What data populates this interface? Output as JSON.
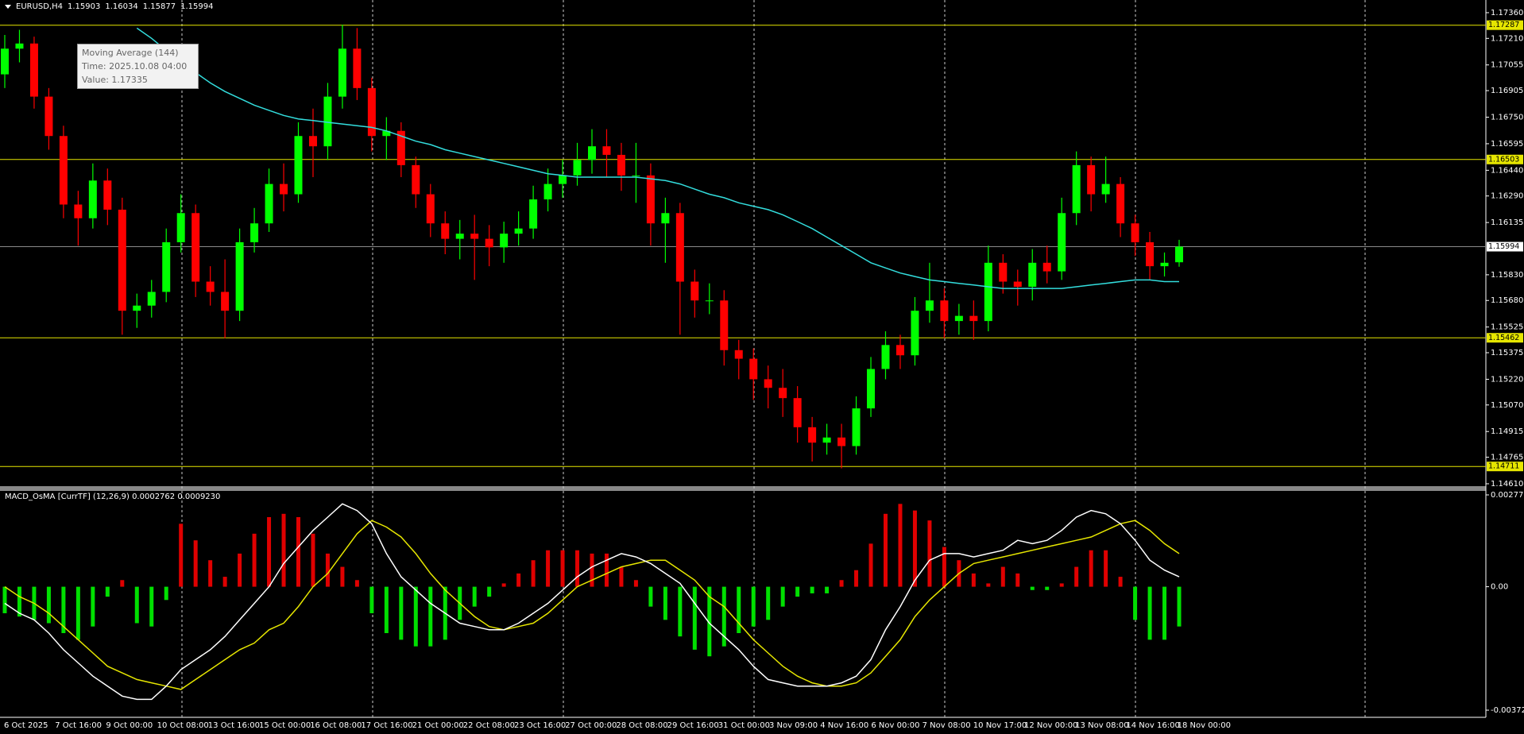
{
  "chart_data": [
    {
      "type": "candlestick",
      "title": "EURUSD,H4",
      "up_color": "#00ff00",
      "down_color": "#ff0000",
      "open": [
        1.17,
        1.1715,
        1.1718,
        1.1687,
        1.1664,
        1.1624,
        1.1616,
        1.1638,
        1.1621,
        1.1562,
        1.1565,
        1.1573,
        1.1602,
        1.1619,
        1.1579,
        1.1573,
        1.1562,
        1.1602,
        1.1613,
        1.1636,
        1.163,
        1.1664,
        1.1658,
        1.1687,
        1.1715,
        1.1692,
        1.1664,
        1.1667,
        1.1647,
        1.163,
        1.1613,
        1.1604,
        1.1607,
        1.1604,
        1.1599,
        1.1607,
        1.161,
        1.1627,
        1.1636,
        1.1641,
        1.165,
        1.1658,
        1.1653,
        1.1641,
        1.1641,
        1.1613,
        1.1619,
        1.1579,
        1.1568,
        1.1568,
        1.1539,
        1.1534,
        1.1522,
        1.1517,
        1.1511,
        1.1494,
        1.1485,
        1.1488,
        1.1483,
        1.1505,
        1.1528,
        1.1542,
        1.1536,
        1.1562,
        1.1568,
        1.1556,
        1.1559,
        1.1556,
        1.159,
        1.1579,
        1.1576,
        1.159,
        1.1585,
        1.1619,
        1.1647,
        1.163,
        1.1636,
        1.1613,
        1.1602,
        1.1588,
        1.15903
      ],
      "high": [
        1.1723,
        1.1726,
        1.1722,
        1.1692,
        1.167,
        1.1632,
        1.1648,
        1.1645,
        1.1628,
        1.1572,
        1.158,
        1.161,
        1.163,
        1.1624,
        1.1588,
        1.1592,
        1.161,
        1.1622,
        1.1645,
        1.1648,
        1.1672,
        1.168,
        1.1695,
        1.1729,
        1.1727,
        1.1698,
        1.1675,
        1.1672,
        1.1652,
        1.1636,
        1.162,
        1.1615,
        1.1618,
        1.1612,
        1.1614,
        1.162,
        1.1635,
        1.1645,
        1.165,
        1.166,
        1.1668,
        1.1668,
        1.166,
        1.166,
        1.1648,
        1.1628,
        1.1625,
        1.1586,
        1.1578,
        1.1574,
        1.1545,
        1.154,
        1.153,
        1.1528,
        1.1518,
        1.15,
        1.1496,
        1.1496,
        1.1512,
        1.1535,
        1.155,
        1.1548,
        1.157,
        1.159,
        1.1575,
        1.1566,
        1.1568,
        1.16,
        1.1595,
        1.1586,
        1.1598,
        1.16,
        1.1628,
        1.1655,
        1.1652,
        1.1652,
        1.164,
        1.1618,
        1.1608,
        1.1596,
        1.16034
      ],
      "low": [
        1.1692,
        1.1707,
        1.168,
        1.1656,
        1.1616,
        1.16,
        1.161,
        1.1612,
        1.1548,
        1.1552,
        1.1558,
        1.1567,
        1.1596,
        1.157,
        1.1565,
        1.1546,
        1.1556,
        1.1596,
        1.1608,
        1.162,
        1.1625,
        1.164,
        1.165,
        1.168,
        1.1685,
        1.1655,
        1.165,
        1.164,
        1.1622,
        1.1605,
        1.1595,
        1.1592,
        1.158,
        1.1588,
        1.159,
        1.16,
        1.1604,
        1.162,
        1.1628,
        1.1635,
        1.1642,
        1.164,
        1.1632,
        1.1625,
        1.16,
        1.159,
        1.1548,
        1.1558,
        1.156,
        1.153,
        1.1522,
        1.151,
        1.1505,
        1.15,
        1.1485,
        1.1474,
        1.1478,
        1.147,
        1.1478,
        1.15,
        1.1522,
        1.1528,
        1.153,
        1.1555,
        1.1546,
        1.1548,
        1.1545,
        1.155,
        1.1572,
        1.1565,
        1.1568,
        1.1578,
        1.158,
        1.1612,
        1.162,
        1.1625,
        1.1605,
        1.1594,
        1.158,
        1.1582,
        1.15877
      ],
      "close": [
        1.1715,
        1.1718,
        1.1687,
        1.1664,
        1.1624,
        1.1616,
        1.1638,
        1.1621,
        1.1562,
        1.1565,
        1.1573,
        1.1602,
        1.1619,
        1.1579,
        1.1573,
        1.1562,
        1.1602,
        1.1613,
        1.1636,
        1.163,
        1.1664,
        1.1658,
        1.1687,
        1.1715,
        1.1692,
        1.1664,
        1.1667,
        1.1647,
        1.163,
        1.1613,
        1.1604,
        1.1607,
        1.1604,
        1.1599,
        1.1607,
        1.161,
        1.1627,
        1.1636,
        1.1641,
        1.165,
        1.1658,
        1.1653,
        1.1641,
        1.1641,
        1.1613,
        1.1619,
        1.1579,
        1.1568,
        1.1568,
        1.1539,
        1.1534,
        1.1522,
        1.1517,
        1.1511,
        1.1494,
        1.1485,
        1.1488,
        1.1483,
        1.1505,
        1.1528,
        1.1542,
        1.1536,
        1.1562,
        1.1568,
        1.1556,
        1.1559,
        1.1556,
        1.159,
        1.1579,
        1.1576,
        1.159,
        1.1585,
        1.1619,
        1.1647,
        1.163,
        1.1636,
        1.1613,
        1.1602,
        1.1588,
        1.159,
        1.15994
      ],
      "ma": {
        "name": "Moving Average (144)",
        "color": "#33dddd",
        "values": [
          null,
          null,
          null,
          null,
          null,
          null,
          null,
          null,
          null,
          1.1727,
          1.1721,
          1.1714,
          1.1707,
          1.1701,
          1.1695,
          1.169,
          1.1686,
          1.1682,
          1.1679,
          1.1676,
          1.1674,
          1.1673,
          1.1672,
          1.1671,
          1.167,
          1.1669,
          1.1667,
          1.1664,
          1.1661,
          1.1659,
          1.1656,
          1.1654,
          1.1652,
          1.165,
          1.1648,
          1.1646,
          1.1644,
          1.1642,
          1.1641,
          1.164,
          1.164,
          1.164,
          1.164,
          1.164,
          1.1639,
          1.1638,
          1.1636,
          1.1633,
          1.163,
          1.1628,
          1.1625,
          1.1623,
          1.1621,
          1.1618,
          1.1614,
          1.161,
          1.1605,
          1.16,
          1.1595,
          1.159,
          1.1587,
          1.1584,
          1.1582,
          1.158,
          1.1579,
          1.1578,
          1.1577,
          1.1576,
          1.1575,
          1.1575,
          1.1575,
          1.1575,
          1.1575,
          1.1576,
          1.1577,
          1.1578,
          1.1579,
          1.158,
          1.158,
          1.1579,
          1.1579
        ]
      },
      "tooltip": {
        "time": "Time: 2025.10.08 04:00",
        "value": "Value: 1.17335"
      },
      "levels": [
        1.17287,
        1.16503,
        1.15462,
        1.14711
      ],
      "level_color": "#e6e600",
      "ylim": [
        1.14596,
        1.17434
      ],
      "yticks": [
        {
          "value": 1.1736,
          "label": "1.17360"
        },
        {
          "value": 1.1721,
          "label": "1.17210"
        },
        1.17055,
        1.16905,
        {
          "value": 1.1675,
          "label": "1.16750"
        },
        1.16595,
        {
          "value": 1.1644,
          "label": "1.16440"
        },
        {
          "value": 1.1629,
          "label": "1.16290"
        },
        1.16135,
        {
          "value": 1.1583,
          "label": "1.15830"
        },
        {
          "value": 1.1568,
          "label": "1.15680"
        },
        1.15525,
        1.15375,
        {
          "value": 1.1522,
          "label": "1.15220"
        },
        {
          "value": 1.1507,
          "label": "1.15070"
        },
        1.14915,
        1.14765,
        {
          "value": 1.1461,
          "label": "1.14610"
        }
      ],
      "x_labels": [
        "6 Oct 2025",
        "7 Oct 16:00",
        "9 Oct 00:00",
        "10 Oct 08:00",
        "13 Oct 16:00",
        "15 Oct 00:00",
        "16 Oct 08:00",
        "17 Oct 16:00",
        "21 Oct 00:00",
        "22 Oct 08:00",
        "23 Oct 16:00",
        "27 Oct 00:00",
        "28 Oct 08:00",
        "29 Oct 16:00",
        "31 Oct 00:00",
        "3 Nov 09:00",
        "4 Nov 16:00",
        "6 Nov 00:00",
        "7 Nov 08:00",
        "10 Nov 17:00",
        "12 Nov 00:00",
        "13 Nov 08:00",
        "14 Nov 16:00",
        "18 Nov 00:00"
      ]
    },
    {
      "type": "macd",
      "title": "MACD_OsMA [CurrTF] (12,26,9) 0.0002762 0.0009230",
      "pos_color": "#e00000",
      "neg_color": "#00e000",
      "macd_color": "#ffffff",
      "signal_color": "#e6e600",
      "histogram": [
        -0.0008,
        -0.0009,
        -0.001,
        -0.0011,
        -0.0014,
        -0.0016,
        -0.0012,
        -0.0003,
        0.0002,
        -0.0011,
        -0.0012,
        -0.0004,
        0.0019,
        0.0014,
        0.0008,
        0.0003,
        0.001,
        0.0016,
        0.0021,
        0.0022,
        0.0021,
        0.0016,
        0.001,
        0.0006,
        0.0002,
        -0.0008,
        -0.0014,
        -0.0016,
        -0.0018,
        -0.0018,
        -0.0016,
        -0.001,
        -0.0006,
        -0.0003,
        0.0001,
        0.0004,
        0.0008,
        0.0011,
        0.0011,
        0.0011,
        0.001,
        0.001,
        0.0006,
        0.0002,
        -0.0006,
        -0.001,
        -0.0015,
        -0.0019,
        -0.0021,
        -0.0018,
        -0.0014,
        -0.0012,
        -0.001,
        -0.0006,
        -0.0003,
        -0.0002,
        -0.0002,
        0.0002,
        0.0005,
        0.0013,
        0.0022,
        0.0025,
        0.0023,
        0.002,
        0.0012,
        0.0008,
        0.0004,
        0.0001,
        0.0006,
        0.0004,
        -0.0001,
        -0.0001,
        0.0001,
        0.0006,
        0.0011,
        0.0011,
        0.0003,
        -0.001,
        -0.0016,
        -0.0016,
        -0.0012
      ],
      "macd": [
        -0.0005,
        -0.0008,
        -0.001,
        -0.0014,
        -0.0019,
        -0.0023,
        -0.0027,
        -0.003,
        -0.0033,
        -0.0034,
        -0.0034,
        -0.003,
        -0.0025,
        -0.0022,
        -0.0019,
        -0.0015,
        -0.001,
        -0.0005,
        0.0,
        0.0007,
        0.0012,
        0.0017,
        0.0021,
        0.0025,
        0.0023,
        0.0019,
        0.001,
        0.0003,
        -0.0001,
        -0.0005,
        -0.0008,
        -0.0011,
        -0.0012,
        -0.0013,
        -0.0013,
        -0.0011,
        -0.0008,
        -0.0005,
        -0.0001,
        0.0003,
        0.0006,
        0.0008,
        0.001,
        0.0009,
        0.0007,
        0.0004,
        0.0001,
        -0.0005,
        -0.0011,
        -0.0015,
        -0.0019,
        -0.0024,
        -0.0028,
        -0.0029,
        -0.003,
        -0.003,
        -0.003,
        -0.0029,
        -0.0027,
        -0.0022,
        -0.0013,
        -0.0006,
        0.0002,
        0.0008,
        0.001,
        0.001,
        0.0009,
        0.001,
        0.0011,
        0.0014,
        0.0013,
        0.0014,
        0.0017,
        0.0021,
        0.0023,
        0.0022,
        0.0019,
        0.0014,
        0.0008,
        0.0005,
        0.0003
      ],
      "signal": [
        0.0,
        -0.0003,
        -0.0005,
        -0.0008,
        -0.0012,
        -0.0016,
        -0.002,
        -0.0024,
        -0.0026,
        -0.0028,
        -0.0029,
        -0.003,
        -0.0031,
        -0.0028,
        -0.0025,
        -0.0022,
        -0.0019,
        -0.0017,
        -0.0013,
        -0.0011,
        -0.0006,
        0.0,
        0.0004,
        0.001,
        0.0016,
        0.002,
        0.0018,
        0.0015,
        0.001,
        0.0004,
        -0.0001,
        -0.0005,
        -0.0009,
        -0.0012,
        -0.0013,
        -0.0012,
        -0.0011,
        -0.0008,
        -0.0004,
        0.0,
        0.0002,
        0.0004,
        0.0006,
        0.0007,
        0.0008,
        0.0008,
        0.0005,
        0.0002,
        -0.0003,
        -0.0006,
        -0.0011,
        -0.0016,
        -0.002,
        -0.0024,
        -0.0027,
        -0.0029,
        -0.003,
        -0.003,
        -0.0029,
        -0.0026,
        -0.0021,
        -0.0016,
        -0.0009,
        -0.0004,
        0.0,
        0.0004,
        0.0007,
        0.0008,
        0.0009,
        0.001,
        0.0011,
        0.0012,
        0.0013,
        0.0014,
        0.0015,
        0.0017,
        0.0019,
        0.002,
        0.0017,
        0.0013,
        0.001
      ],
      "ylim": [
        -0.003941,
        0.002891
      ],
      "yticks": [
        0.0027715,
        {
          "value": 0,
          "label": "0.00"
        },
        -0.003725
      ]
    }
  ]
}
